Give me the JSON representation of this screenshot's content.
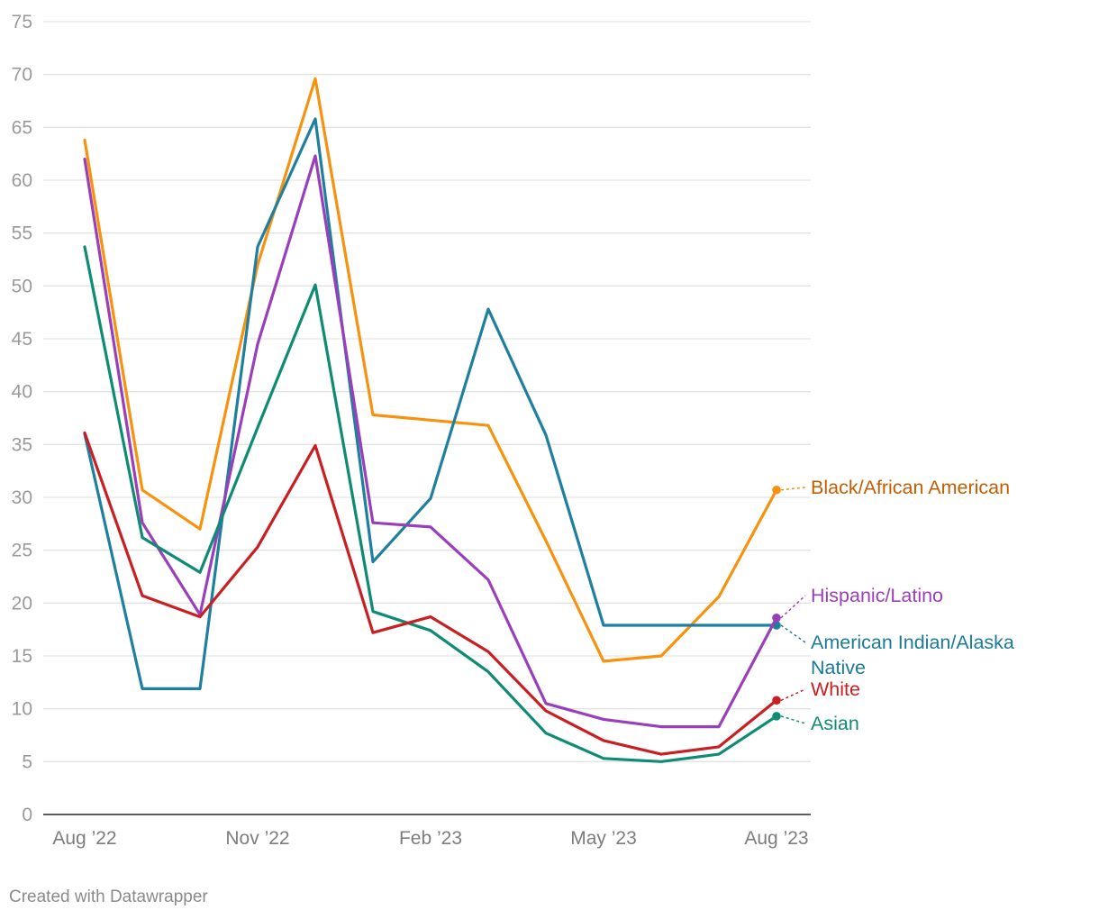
{
  "chart_data": {
    "type": "line",
    "x": [
      "Aug 2022",
      "Sep 2022",
      "Oct 2022",
      "Nov 2022",
      "Dec 2022",
      "Jan 2023",
      "Feb 2023",
      "Mar 2023",
      "Apr 2023",
      "May 2023",
      "Jun 2023",
      "Jul 2023",
      "Aug 2023"
    ],
    "x_ticks": [
      {
        "index": 0,
        "label": "Aug ’22"
      },
      {
        "index": 3,
        "label": "Nov ’22"
      },
      {
        "index": 6,
        "label": "Feb ’23"
      },
      {
        "index": 9,
        "label": "May ’23"
      },
      {
        "index": 12,
        "label": "Aug ’23"
      }
    ],
    "y_ticks": [
      0,
      5,
      10,
      15,
      20,
      25,
      30,
      35,
      40,
      45,
      50,
      55,
      60,
      65,
      70,
      75
    ],
    "ylim": [
      0,
      75
    ],
    "title": "",
    "xlabel": "",
    "ylabel": "",
    "grid": true,
    "series": [
      {
        "name": "Black/African American",
        "color": "#f7920f",
        "label_color": "#c25e00",
        "values": [
          63.8,
          30.7,
          27.0,
          52.0,
          69.6,
          37.8,
          37.3,
          36.8,
          25.9,
          14.5,
          15.0,
          20.6,
          30.7
        ]
      },
      {
        "name": "American Indian/Alaska Native",
        "label_lines": [
          "American Indian/Alaska",
          "Native"
        ],
        "color": "#1f7f9f",
        "label_color": "#1b7a9a",
        "values": [
          36.0,
          11.9,
          11.9,
          53.7,
          65.8,
          23.9,
          29.9,
          47.8,
          35.9,
          17.9,
          17.9,
          17.9,
          17.9
        ]
      },
      {
        "name": "Hispanic/Latino",
        "color": "#9a3fba",
        "label_color": "#9a3fba",
        "values": [
          62.0,
          27.6,
          18.9,
          44.5,
          62.3,
          27.6,
          27.2,
          22.2,
          10.5,
          9.0,
          8.3,
          8.3,
          18.6
        ]
      },
      {
        "name": "Asian",
        "color": "#0e8c73",
        "label_color": "#0e8c73",
        "values": [
          53.7,
          26.2,
          22.9,
          36.6,
          50.1,
          19.2,
          17.4,
          13.5,
          7.7,
          5.3,
          5.0,
          5.7,
          9.3
        ]
      },
      {
        "name": "White",
        "color": "#c91f22",
        "label_color": "#c91f22",
        "values": [
          36.1,
          20.7,
          18.7,
          25.3,
          34.9,
          17.2,
          18.7,
          15.4,
          9.8,
          7.0,
          5.7,
          6.4,
          10.8
        ]
      }
    ]
  },
  "footer": {
    "credit": "Created with Datawrapper"
  }
}
